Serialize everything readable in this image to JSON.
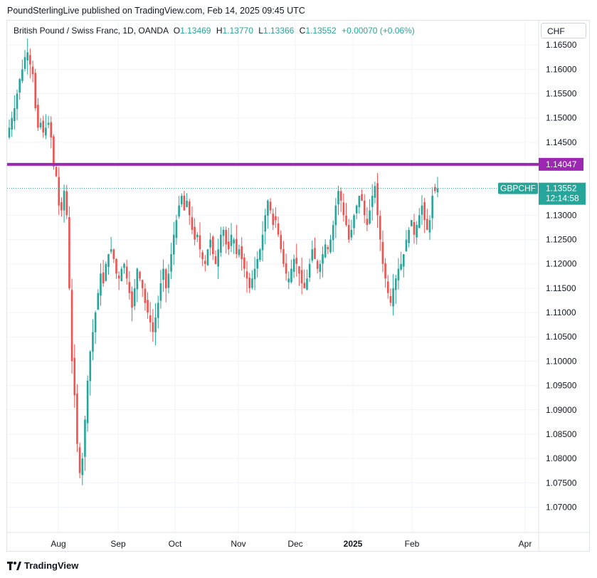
{
  "header": {
    "published": "PoundSterlingLive published on TradingView.com, Feb 14, 2025 09:45 UTC"
  },
  "legend": {
    "symbol": "British Pound / Swiss Franc, 1D, OANDA",
    "open_label": "O",
    "open": "1.13469",
    "high_label": "H",
    "high": "1.13770",
    "low_label": "L",
    "low": "1.13366",
    "close_label": "C",
    "close": "1.13552",
    "change": "+0.00070 (+0.06%)"
  },
  "currency_button": "CHF",
  "footer": {
    "brand": "TradingView"
  },
  "colors": {
    "up": "#26a69a",
    "down": "#ef5350",
    "level": "#9c27b0",
    "grid": "#f0f3fa"
  },
  "chart_data": {
    "type": "candlestick",
    "symbol": "GBPCHF",
    "y_ticks": [
      "1.16500",
      "1.16000",
      "1.15500",
      "1.15000",
      "1.14500",
      "1.14000",
      "1.13500",
      "1.13000",
      "1.12500",
      "1.12000",
      "1.11500",
      "1.11000",
      "1.10500",
      "1.10000",
      "1.09500",
      "1.09000",
      "1.08500",
      "1.08000",
      "1.07500",
      "1.07000"
    ],
    "ylim": [
      1.0648,
      1.17
    ],
    "x_ticks": [
      "Aug",
      "Sep",
      "Oct",
      "Nov",
      "Dec",
      "2025",
      "Feb",
      "Apr"
    ],
    "horizontal_level": {
      "value": 1.14047,
      "label": "1.14047"
    },
    "last_price": {
      "symbol_label": "GBPCHF",
      "value": 1.13552,
      "label": "1.13552",
      "countdown": "12:14:58"
    },
    "closes": [
      1.148,
      1.15,
      1.152,
      1.155,
      1.158,
      1.16,
      1.1625,
      1.1635,
      1.161,
      1.159,
      1.152,
      1.148,
      1.149,
      1.147,
      1.148,
      1.149,
      1.146,
      1.14,
      1.138,
      1.132,
      1.131,
      1.135,
      1.13,
      1.115,
      1.1,
      1.093,
      1.083,
      1.077,
      1.08,
      1.088,
      1.096,
      1.102,
      1.106,
      1.11,
      1.114,
      1.118,
      1.116,
      1.12,
      1.122,
      1.123,
      1.121,
      1.118,
      1.117,
      1.119,
      1.12,
      1.117,
      1.114,
      1.111,
      1.115,
      1.119,
      1.117,
      1.115,
      1.112,
      1.11,
      1.108,
      1.106,
      1.109,
      1.112,
      1.116,
      1.119,
      1.115,
      1.118,
      1.122,
      1.126,
      1.129,
      1.132,
      1.134,
      1.131,
      1.133,
      1.13,
      1.127,
      1.125,
      1.126,
      1.123,
      1.121,
      1.12,
      1.123,
      1.125,
      1.122,
      1.12,
      1.123,
      1.126,
      1.127,
      1.124,
      1.123,
      1.126,
      1.125,
      1.122,
      1.123,
      1.121,
      1.119,
      1.117,
      1.115,
      1.117,
      1.119,
      1.121,
      1.123,
      1.126,
      1.13,
      1.133,
      1.131,
      1.128,
      1.129,
      1.126,
      1.123,
      1.12,
      1.118,
      1.117,
      1.119,
      1.121,
      1.12,
      1.118,
      1.116,
      1.115,
      1.117,
      1.12,
      1.123,
      1.121,
      1.119,
      1.12,
      1.122,
      1.124,
      1.123,
      1.125,
      1.128,
      1.132,
      1.135,
      1.133,
      1.13,
      1.128,
      1.125,
      1.127,
      1.13,
      1.132,
      1.134,
      1.133,
      1.13,
      1.128,
      1.131,
      1.134,
      1.136,
      1.13,
      1.125,
      1.12,
      1.117,
      1.114,
      1.112,
      1.115,
      1.117,
      1.119,
      1.12,
      1.122,
      1.125,
      1.127,
      1.129,
      1.126,
      1.128,
      1.13,
      1.132,
      1.129,
      1.127,
      1.129,
      1.134,
      1.135,
      1.1355
    ],
    "opens_note": "each candle opens near previous close"
  }
}
